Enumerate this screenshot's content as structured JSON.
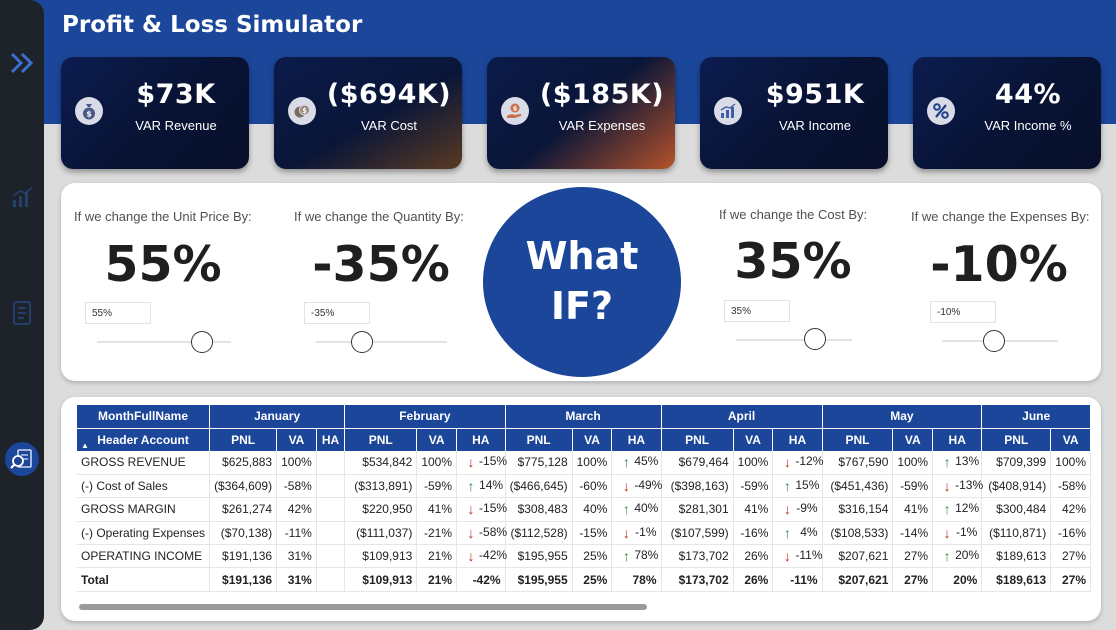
{
  "header": {
    "title": "Profit & Loss Simulator"
  },
  "sidebar": {
    "items": [
      {
        "icon": "double-chevron-right-icon"
      },
      {
        "icon": "chart-icon"
      },
      {
        "icon": "document-icon"
      },
      {
        "icon": "search-report-icon"
      }
    ]
  },
  "kpis": [
    {
      "value": "$73K",
      "label": "VAR Revenue",
      "icon": "money-bag-icon"
    },
    {
      "value": "($694K)",
      "label": "VAR Cost",
      "icon": "coins-icon"
    },
    {
      "value": "($185K)",
      "label": "VAR Expenses",
      "icon": "hand-coin-icon"
    },
    {
      "value": "$951K",
      "label": "VAR Income",
      "icon": "growth-chart-icon"
    },
    {
      "value": "44%",
      "label": "VAR Income %",
      "icon": "percent-icon"
    }
  ],
  "whatif": {
    "center_line1": "What",
    "center_line2": "IF?",
    "params": [
      {
        "label": "If we change the Unit Price By:",
        "value": "55%",
        "input": "55%",
        "level": 0.78
      },
      {
        "label": "If we change the Quantity By:",
        "value": "-35%",
        "input": "-35%",
        "level": 0.35
      },
      {
        "label": "If we change the Cost By:",
        "value": "35%",
        "input": "35%",
        "level": 0.68
      },
      {
        "label": "If we change the Expenses By:",
        "value": "-10%",
        "input": "-10%",
        "level": 0.45
      }
    ]
  },
  "table": {
    "month_header": "MonthFullName",
    "account_header": "Header Account",
    "months": [
      "January",
      "February",
      "March",
      "April",
      "May",
      "June"
    ],
    "subheaders": {
      "pnl": "PNL",
      "va": "VA",
      "ha": "HA"
    },
    "rows": [
      {
        "account": "GROSS REVENUE",
        "cells": [
          {
            "pnl": "$625,883",
            "va": "100%",
            "ha": "",
            "dir": ""
          },
          {
            "pnl": "$534,842",
            "va": "100%",
            "ha": "-15%",
            "dir": "down"
          },
          {
            "pnl": "$775,128",
            "va": "100%",
            "ha": "45%",
            "dir": "up"
          },
          {
            "pnl": "$679,464",
            "va": "100%",
            "ha": "-12%",
            "dir": "down"
          },
          {
            "pnl": "$767,590",
            "va": "100%",
            "ha": "13%",
            "dir": "up"
          },
          {
            "pnl": "$709,399",
            "va": "100%",
            "ha": "",
            "dir": ""
          }
        ]
      },
      {
        "account": "(-) Cost of Sales",
        "cells": [
          {
            "pnl": "($364,609)",
            "va": "-58%",
            "ha": "",
            "dir": ""
          },
          {
            "pnl": "($313,891)",
            "va": "-59%",
            "ha": "14%",
            "dir": "up"
          },
          {
            "pnl": "($466,645)",
            "va": "-60%",
            "ha": "-49%",
            "dir": "down"
          },
          {
            "pnl": "($398,163)",
            "va": "-59%",
            "ha": "15%",
            "dir": "up"
          },
          {
            "pnl": "($451,436)",
            "va": "-59%",
            "ha": "-13%",
            "dir": "down"
          },
          {
            "pnl": "($408,914)",
            "va": "-58%",
            "ha": "",
            "dir": ""
          }
        ]
      },
      {
        "account": "GROSS MARGIN",
        "cells": [
          {
            "pnl": "$261,274",
            "va": "42%",
            "ha": "",
            "dir": ""
          },
          {
            "pnl": "$220,950",
            "va": "41%",
            "ha": "-15%",
            "dir": "down"
          },
          {
            "pnl": "$308,483",
            "va": "40%",
            "ha": "40%",
            "dir": "up"
          },
          {
            "pnl": "$281,301",
            "va": "41%",
            "ha": "-9%",
            "dir": "down"
          },
          {
            "pnl": "$316,154",
            "va": "41%",
            "ha": "12%",
            "dir": "up"
          },
          {
            "pnl": "$300,484",
            "va": "42%",
            "ha": "",
            "dir": ""
          }
        ]
      },
      {
        "account": "(-) Operating Expenses",
        "cells": [
          {
            "pnl": "($70,138)",
            "va": "-11%",
            "ha": "",
            "dir": ""
          },
          {
            "pnl": "($111,037)",
            "va": "-21%",
            "ha": "-58%",
            "dir": "down"
          },
          {
            "pnl": "($112,528)",
            "va": "-15%",
            "ha": "-1%",
            "dir": "down"
          },
          {
            "pnl": "($107,599)",
            "va": "-16%",
            "ha": "4%",
            "dir": "up"
          },
          {
            "pnl": "($108,533)",
            "va": "-14%",
            "ha": "-1%",
            "dir": "down"
          },
          {
            "pnl": "($110,871)",
            "va": "-16%",
            "ha": "",
            "dir": ""
          }
        ]
      },
      {
        "account": "OPERATING INCOME",
        "cells": [
          {
            "pnl": "$191,136",
            "va": "31%",
            "ha": "",
            "dir": ""
          },
          {
            "pnl": "$109,913",
            "va": "21%",
            "ha": "-42%",
            "dir": "down"
          },
          {
            "pnl": "$195,955",
            "va": "25%",
            "ha": "78%",
            "dir": "up"
          },
          {
            "pnl": "$173,702",
            "va": "26%",
            "ha": "-11%",
            "dir": "down"
          },
          {
            "pnl": "$207,621",
            "va": "27%",
            "ha": "20%",
            "dir": "up"
          },
          {
            "pnl": "$189,613",
            "va": "27%",
            "ha": "",
            "dir": ""
          }
        ]
      }
    ],
    "total": {
      "account": "Total",
      "cells": [
        {
          "pnl": "$191,136",
          "va": "31%",
          "ha": ""
        },
        {
          "pnl": "$109,913",
          "va": "21%",
          "ha": "-42%"
        },
        {
          "pnl": "$195,955",
          "va": "25%",
          "ha": "78%"
        },
        {
          "pnl": "$173,702",
          "va": "26%",
          "ha": "-11%"
        },
        {
          "pnl": "$207,621",
          "va": "27%",
          "ha": "20%"
        },
        {
          "pnl": "$189,613",
          "va": "27%",
          "ha": ""
        }
      ]
    }
  },
  "colors": {
    "primary": "#1b4699",
    "up": "#2e8b42",
    "down": "#c2261c",
    "sidebar": "#1d2329"
  }
}
